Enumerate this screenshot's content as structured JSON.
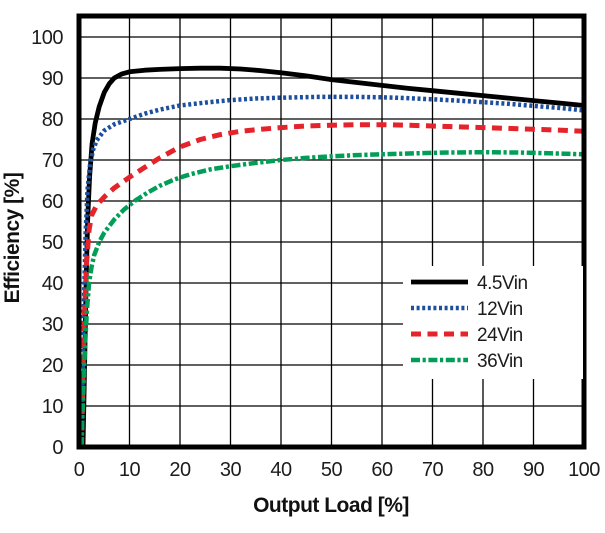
{
  "chart_data": {
    "type": "line",
    "title": "",
    "xlabel": "Output Load [%]",
    "ylabel": "Efficiency [%]",
    "xlim": [
      0,
      100
    ],
    "ylim": [
      0,
      105
    ],
    "x_ticks": [
      0,
      10,
      20,
      30,
      40,
      50,
      60,
      70,
      80,
      90,
      100
    ],
    "y_ticks": [
      0,
      10,
      20,
      30,
      40,
      50,
      60,
      70,
      80,
      90,
      100
    ],
    "grid": true,
    "grid_color": "#000000",
    "frame_color": "#000000",
    "legend_position": "inside-lower-right",
    "legend_background": "#ffffff",
    "series": [
      {
        "name": "4.5Vin",
        "color": "#000000",
        "style": "solid",
        "points": [
          [
            0.8,
            0
          ],
          [
            1.1,
            20
          ],
          [
            1.4,
            40
          ],
          [
            1.7,
            55
          ],
          [
            2.1,
            66
          ],
          [
            2.6,
            74
          ],
          [
            3.2,
            79
          ],
          [
            4,
            83
          ],
          [
            5,
            86.5
          ],
          [
            6,
            88.6
          ],
          [
            7,
            90
          ],
          [
            8.5,
            91
          ],
          [
            10,
            91.5
          ],
          [
            13,
            91.9
          ],
          [
            16,
            92.1
          ],
          [
            20,
            92.3
          ],
          [
            24,
            92.4
          ],
          [
            28,
            92.4
          ],
          [
            32,
            92.2
          ],
          [
            36,
            91.8
          ],
          [
            40,
            91.3
          ],
          [
            45,
            90.5
          ],
          [
            50,
            89.6
          ],
          [
            55,
            88.9
          ],
          [
            60,
            88.2
          ],
          [
            65,
            87.5
          ],
          [
            70,
            86.9
          ],
          [
            75,
            86.3
          ],
          [
            80,
            85.7
          ],
          [
            85,
            85.1
          ],
          [
            90,
            84.5
          ],
          [
            95,
            83.9
          ],
          [
            100,
            83.3
          ]
        ]
      },
      {
        "name": "12Vin",
        "color": "#1c4f9e",
        "style": "dotted",
        "points": [
          [
            0.5,
            0
          ],
          [
            0.9,
            30
          ],
          [
            1.3,
            52
          ],
          [
            1.7,
            63
          ],
          [
            2.2,
            69
          ],
          [
            2.8,
            72.5
          ],
          [
            3.5,
            74.8
          ],
          [
            5,
            77.2
          ],
          [
            7,
            78.7
          ],
          [
            10,
            80
          ],
          [
            13,
            81.3
          ],
          [
            16,
            82.3
          ],
          [
            20,
            83.3
          ],
          [
            25,
            84
          ],
          [
            30,
            84.6
          ],
          [
            35,
            85
          ],
          [
            40,
            85.2
          ],
          [
            47,
            85.4
          ],
          [
            55,
            85.4
          ],
          [
            60,
            85.3
          ],
          [
            65,
            85.1
          ],
          [
            70,
            84.8
          ],
          [
            75,
            84.5
          ],
          [
            80,
            84.1
          ],
          [
            85,
            83.7
          ],
          [
            90,
            83.2
          ],
          [
            95,
            82.7
          ],
          [
            100,
            82.1
          ]
        ]
      },
      {
        "name": "24Vin",
        "color": "#e4232b",
        "style": "dashed",
        "points": [
          [
            0.5,
            0
          ],
          [
            0.8,
            18
          ],
          [
            1.1,
            33
          ],
          [
            1.5,
            45
          ],
          [
            2,
            53
          ],
          [
            2.5,
            56.5
          ],
          [
            3.5,
            59
          ],
          [
            5,
            61
          ],
          [
            7,
            63.2
          ],
          [
            10,
            65.8
          ],
          [
            13,
            68.2
          ],
          [
            16,
            70.5
          ],
          [
            20,
            73.2
          ],
          [
            24,
            75
          ],
          [
            28,
            76.2
          ],
          [
            32,
            77
          ],
          [
            36,
            77.5
          ],
          [
            40,
            77.9
          ],
          [
            45,
            78.3
          ],
          [
            50,
            78.5
          ],
          [
            55,
            78.6
          ],
          [
            60,
            78.6
          ],
          [
            65,
            78.5
          ],
          [
            70,
            78.3
          ],
          [
            75,
            78.1
          ],
          [
            80,
            77.9
          ],
          [
            85,
            77.7
          ],
          [
            90,
            77.5
          ],
          [
            95,
            77.3
          ],
          [
            100,
            77
          ]
        ]
      },
      {
        "name": "36Vin",
        "color": "#009e56",
        "style": "dash-dot",
        "points": [
          [
            0.5,
            0
          ],
          [
            0.8,
            12
          ],
          [
            1.2,
            25
          ],
          [
            1.6,
            34
          ],
          [
            2,
            40
          ],
          [
            2.5,
            44
          ],
          [
            3,
            46.8
          ],
          [
            4,
            50
          ],
          [
            5,
            52.3
          ],
          [
            7,
            55.5
          ],
          [
            9,
            58
          ],
          [
            11,
            60
          ],
          [
            13.5,
            62
          ],
          [
            16,
            63.7
          ],
          [
            19,
            65.3
          ],
          [
            22,
            66.5
          ],
          [
            26,
            67.7
          ],
          [
            30,
            68.5
          ],
          [
            35,
            69.3
          ],
          [
            40,
            70
          ],
          [
            45,
            70.5
          ],
          [
            50,
            70.9
          ],
          [
            55,
            71.2
          ],
          [
            60,
            71.4
          ],
          [
            66,
            71.6
          ],
          [
            72,
            71.8
          ],
          [
            80,
            71.9
          ],
          [
            88,
            71.8
          ],
          [
            94,
            71.6
          ],
          [
            100,
            71.4
          ]
        ]
      }
    ]
  }
}
